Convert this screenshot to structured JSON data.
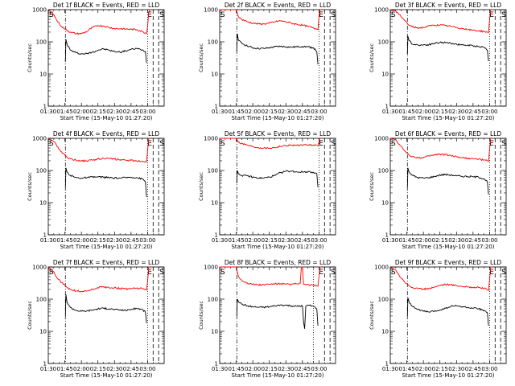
{
  "figure": {
    "time_axis_label": "Start Time (15-May-10 01:27:20)",
    "count_axis_label": "Counts/sec",
    "x_ticks": [
      "01:30",
      "01:45",
      "02:00",
      "02:15",
      "02:30",
      "02:45",
      "03:00"
    ],
    "y_ticks": [
      "1",
      "10",
      "100",
      "1000"
    ],
    "marker_labels": [
      "S",
      "E",
      "S"
    ],
    "colors": {
      "events": "#000000",
      "lld": "#ff0000"
    }
  },
  "chart_data": [
    {
      "type": "line",
      "title": "Det 1f BLACK = Events, RED = LLD",
      "x_unit": "minutes after 01:30",
      "xlim": [
        0,
        105
      ],
      "ylim": [
        1,
        1000
      ],
      "yscale": "log",
      "markers": {
        "dashdot": 15.5,
        "dotted": 90,
        "dashed": [
          95,
          100
        ]
      },
      "series": [
        {
          "color": "#000000",
          "x": [
            15.5,
            16,
            17,
            20,
            25,
            30,
            35,
            40,
            45,
            50,
            55,
            60,
            65,
            70,
            75,
            80,
            85,
            88,
            89
          ],
          "y": [
            25,
            120,
            85,
            55,
            46,
            42,
            43,
            48,
            55,
            60,
            55,
            50,
            48,
            52,
            58,
            62,
            56,
            50,
            22
          ]
        },
        {
          "color": "#ff0000",
          "x": [
            0,
            5,
            8,
            12,
            15,
            20,
            25,
            30,
            35,
            40,
            45,
            50,
            55,
            60,
            65,
            70,
            75,
            80,
            85,
            88,
            89,
            90,
            91,
            92
          ],
          "y": [
            1000,
            700,
            450,
            300,
            250,
            200,
            180,
            180,
            210,
            280,
            320,
            310,
            280,
            260,
            255,
            250,
            245,
            240,
            210,
            190,
            180,
            300,
            800,
            1000
          ]
        }
      ]
    },
    {
      "type": "line",
      "title": "Det 2f BLACK = Events, RED = LLD",
      "x_unit": "minutes after 01:30",
      "xlim": [
        0,
        105
      ],
      "ylim": [
        1,
        1000
      ],
      "yscale": "log",
      "markers": {
        "dashdot": 15.5,
        "dotted": 90,
        "dashed": [
          95,
          100
        ]
      },
      "series": [
        {
          "color": "#000000",
          "x": [
            15.5,
            16,
            17,
            20,
            25,
            30,
            35,
            40,
            45,
            50,
            55,
            60,
            65,
            70,
            75,
            80,
            85,
            88,
            89
          ],
          "y": [
            50,
            180,
            110,
            90,
            75,
            65,
            62,
            62,
            65,
            70,
            72,
            70,
            68,
            70,
            72,
            70,
            65,
            50,
            20
          ]
        },
        {
          "color": "#ff0000",
          "x": [
            0,
            5,
            8,
            12,
            15,
            17,
            20,
            25,
            30,
            35,
            40,
            45,
            50,
            55,
            60,
            65,
            70,
            75,
            80,
            85,
            88,
            89,
            90,
            91,
            92
          ],
          "y": [
            1000,
            1000,
            1000,
            1000,
            1000,
            600,
            500,
            420,
            380,
            360,
            360,
            380,
            420,
            450,
            420,
            380,
            350,
            330,
            300,
            270,
            250,
            240,
            600,
            1000,
            1000
          ]
        }
      ]
    },
    {
      "type": "line",
      "title": "Det 3f BLACK = Events, RED = LLD",
      "x_unit": "minutes after 01:30",
      "xlim": [
        0,
        105
      ],
      "ylim": [
        1,
        1000
      ],
      "yscale": "log",
      "markers": {
        "dashdot": 15.5,
        "dotted": 90,
        "dashed": [
          95,
          100
        ]
      },
      "series": [
        {
          "color": "#000000",
          "x": [
            15.5,
            16,
            17,
            20,
            25,
            30,
            35,
            40,
            45,
            50,
            55,
            60,
            65,
            70,
            75,
            80,
            85,
            88,
            89
          ],
          "y": [
            40,
            150,
            110,
            85,
            80,
            80,
            82,
            90,
            95,
            95,
            90,
            85,
            80,
            78,
            75,
            72,
            68,
            55,
            25
          ]
        },
        {
          "color": "#ff0000",
          "x": [
            0,
            5,
            8,
            12,
            15,
            17,
            20,
            25,
            30,
            35,
            40,
            45,
            50,
            55,
            60,
            65,
            70,
            75,
            80,
            85,
            88,
            89,
            90,
            91,
            92
          ],
          "y": [
            1000,
            900,
            700,
            500,
            400,
            330,
            290,
            270,
            280,
            310,
            330,
            330,
            320,
            300,
            280,
            260,
            240,
            230,
            220,
            210,
            200,
            190,
            500,
            1000,
            1000
          ]
        }
      ]
    },
    {
      "type": "line",
      "title": "Det 4f BLACK = Events, RED = LLD",
      "x_unit": "minutes after 01:30",
      "xlim": [
        0,
        105
      ],
      "ylim": [
        1,
        1000
      ],
      "yscale": "log",
      "markers": {
        "dashdot": 15.5,
        "dotted": 90,
        "dashed": [
          95,
          100
        ]
      },
      "series": [
        {
          "color": "#000000",
          "x": [
            15.5,
            16,
            17,
            20,
            25,
            30,
            35,
            40,
            45,
            50,
            55,
            60,
            65,
            70,
            75,
            80,
            85,
            88,
            89
          ],
          "y": [
            30,
            120,
            90,
            70,
            60,
            58,
            60,
            62,
            63,
            62,
            60,
            58,
            58,
            60,
            62,
            60,
            55,
            45,
            15
          ]
        },
        {
          "color": "#ff0000",
          "x": [
            0,
            5,
            8,
            12,
            15,
            17,
            20,
            25,
            30,
            35,
            40,
            45,
            50,
            55,
            60,
            65,
            70,
            75,
            80,
            85,
            88,
            89,
            90,
            91,
            92
          ],
          "y": [
            1000,
            800,
            550,
            380,
            300,
            260,
            230,
            210,
            200,
            200,
            210,
            230,
            240,
            235,
            225,
            215,
            210,
            205,
            200,
            195,
            190,
            185,
            400,
            1000,
            1000
          ]
        }
      ]
    },
    {
      "type": "line",
      "title": "Det 5f BLACK = Events, RED = LLD",
      "x_unit": "minutes after 01:30",
      "xlim": [
        0,
        105
      ],
      "ylim": [
        1,
        1000
      ],
      "yscale": "log",
      "markers": {
        "dashdot": 15.5,
        "dotted": 90,
        "dashed": [
          95,
          100
        ]
      },
      "series": [
        {
          "color": "#000000",
          "x": [
            15.5,
            16,
            17,
            20,
            25,
            30,
            35,
            40,
            45,
            50,
            55,
            60,
            65,
            70,
            75,
            80,
            85,
            88,
            89
          ],
          "y": [
            40,
            100,
            80,
            70,
            68,
            62,
            58,
            58,
            62,
            70,
            85,
            95,
            95,
            90,
            90,
            92,
            88,
            80,
            30
          ]
        },
        {
          "color": "#ff0000",
          "x": [
            0,
            5,
            8,
            12,
            15,
            17,
            20,
            25,
            30,
            35,
            40,
            45,
            50,
            55,
            60,
            65,
            70,
            75,
            80,
            85,
            88,
            89,
            90,
            91,
            92
          ],
          "y": [
            1000,
            1000,
            1000,
            1000,
            1000,
            750,
            700,
            620,
            560,
            520,
            500,
            500,
            520,
            560,
            600,
            620,
            610,
            600,
            620,
            620,
            600,
            580,
            800,
            1000,
            1000
          ]
        }
      ]
    },
    {
      "type": "line",
      "title": "Det 6f BLACK = Events, RED = LLD",
      "x_unit": "minutes after 01:30",
      "xlim": [
        0,
        105
      ],
      "ylim": [
        1,
        1000
      ],
      "yscale": "log",
      "markers": {
        "dashdot": 15.5,
        "dotted": 90,
        "dashed": [
          95,
          100
        ]
      },
      "series": [
        {
          "color": "#000000",
          "x": [
            15.5,
            16,
            17,
            20,
            25,
            30,
            35,
            40,
            45,
            50,
            55,
            60,
            65,
            70,
            75,
            80,
            85,
            88,
            89
          ],
          "y": [
            30,
            120,
            90,
            70,
            60,
            58,
            60,
            65,
            72,
            75,
            72,
            68,
            66,
            65,
            64,
            62,
            55,
            45,
            18
          ]
        },
        {
          "color": "#ff0000",
          "x": [
            0,
            5,
            8,
            12,
            15,
            17,
            20,
            25,
            30,
            35,
            40,
            45,
            50,
            55,
            60,
            65,
            70,
            75,
            80,
            85,
            88,
            89,
            90,
            91,
            92
          ],
          "y": [
            1000,
            900,
            650,
            450,
            350,
            300,
            270,
            250,
            250,
            280,
            310,
            320,
            310,
            290,
            270,
            250,
            240,
            230,
            225,
            210,
            200,
            190,
            450,
            1000,
            1000
          ]
        }
      ]
    },
    {
      "type": "line",
      "title": "Det 7f BLACK = Events, RED = LLD",
      "x_unit": "minutes after 01:30",
      "xlim": [
        0,
        105
      ],
      "ylim": [
        1,
        1000
      ],
      "yscale": "log",
      "markers": {
        "dashdot": 15.5,
        "dotted": 90,
        "dashed": [
          95,
          100
        ]
      },
      "series": [
        {
          "color": "#000000",
          "x": [
            15.5,
            16,
            17,
            20,
            25,
            30,
            35,
            40,
            45,
            50,
            55,
            60,
            65,
            70,
            75,
            80,
            85,
            88,
            89
          ],
          "y": [
            30,
            140,
            80,
            55,
            45,
            42,
            43,
            46,
            50,
            52,
            50,
            48,
            46,
            45,
            48,
            52,
            48,
            40,
            18
          ]
        },
        {
          "color": "#ff0000",
          "x": [
            0,
            5,
            8,
            12,
            15,
            17,
            20,
            25,
            30,
            35,
            40,
            45,
            50,
            55,
            60,
            65,
            70,
            75,
            80,
            85,
            88,
            89,
            90,
            91,
            92
          ],
          "y": [
            1000,
            700,
            450,
            330,
            270,
            230,
            200,
            180,
            175,
            180,
            200,
            230,
            240,
            230,
            225,
            215,
            210,
            210,
            220,
            210,
            200,
            190,
            350,
            1000,
            1000
          ]
        }
      ]
    },
    {
      "type": "line",
      "title": "Det 8f BLACK = Events, RED = LLD",
      "x_unit": "minutes after 01:30",
      "xlim": [
        0,
        105
      ],
      "ylim": [
        1,
        1000
      ],
      "yscale": "log",
      "markers": {
        "dashdot": 15.5,
        "dotted": 85,
        "dashed": [
          95,
          100
        ]
      },
      "series": [
        {
          "color": "#000000",
          "x": [
            15.5,
            16,
            17,
            20,
            25,
            30,
            35,
            40,
            45,
            50,
            55,
            60,
            65,
            70,
            75,
            76,
            77,
            78,
            80,
            85,
            88,
            89
          ],
          "y": [
            30,
            100,
            85,
            70,
            62,
            58,
            56,
            56,
            58,
            62,
            66,
            65,
            62,
            60,
            62,
            20,
            12,
            60,
            65,
            60,
            50,
            15
          ]
        },
        {
          "color": "#ff0000",
          "x": [
            0,
            5,
            8,
            12,
            15,
            17,
            20,
            25,
            30,
            35,
            40,
            45,
            50,
            55,
            60,
            65,
            70,
            73,
            74,
            75,
            76,
            78,
            80,
            85,
            88,
            89,
            90,
            91,
            92
          ],
          "y": [
            1000,
            1000,
            1000,
            1000,
            1000,
            500,
            380,
            320,
            290,
            280,
            280,
            290,
            300,
            300,
            290,
            290,
            300,
            310,
            1000,
            1000,
            290,
            280,
            280,
            270,
            260,
            250,
            500,
            1000,
            1000
          ]
        }
      ]
    },
    {
      "type": "line",
      "title": "Det 9f BLACK = Events, RED = LLD",
      "x_unit": "minutes after 01:30",
      "xlim": [
        0,
        105
      ],
      "ylim": [
        1,
        1000
      ],
      "yscale": "log",
      "markers": {
        "dashdot": 15.5,
        "dotted": 90,
        "dashed": [
          95,
          100
        ]
      },
      "series": [
        {
          "color": "#000000",
          "x": [
            15.5,
            16,
            17,
            20,
            25,
            30,
            35,
            40,
            45,
            50,
            55,
            60,
            65,
            70,
            75,
            80,
            85,
            88,
            89
          ],
          "y": [
            30,
            110,
            85,
            60,
            48,
            42,
            40,
            42,
            46,
            52,
            60,
            62,
            58,
            55,
            52,
            50,
            45,
            38,
            15
          ]
        },
        {
          "color": "#ff0000",
          "x": [
            0,
            5,
            8,
            12,
            15,
            17,
            20,
            25,
            30,
            35,
            40,
            45,
            50,
            55,
            60,
            65,
            70,
            75,
            80,
            85,
            88,
            89,
            90,
            91,
            92
          ],
          "y": [
            1000,
            800,
            550,
            380,
            300,
            260,
            230,
            210,
            205,
            215,
            240,
            270,
            290,
            280,
            265,
            250,
            240,
            235,
            230,
            215,
            200,
            185,
            400,
            1000,
            1000
          ]
        }
      ]
    }
  ]
}
